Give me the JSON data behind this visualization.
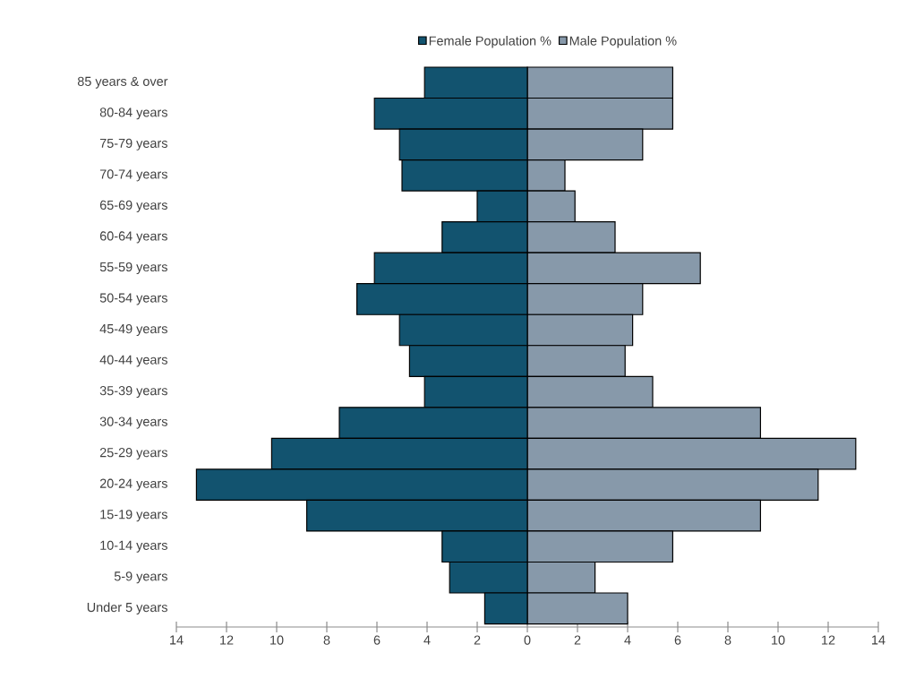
{
  "chart_data": {
    "type": "bar",
    "orientation": "horizontal",
    "legend": "top",
    "stacked": true,
    "categories": [
      "85 years & over",
      "80-84 years",
      "75-79 years",
      "70-74 years",
      "65-69 years",
      "60-64 years",
      "55-59 years",
      "50-54 years",
      "45-49 years",
      "40-44 years",
      "35-39 years",
      "30-34 years",
      "25-29 years",
      "20-24 years",
      "15-19 years",
      "10-14 years",
      "5-9 years",
      "Under 5 years"
    ],
    "series": [
      {
        "name": "Female Population %",
        "color": "#12536f",
        "values": [
          -4.1,
          -6.1,
          -5.1,
          -5.0,
          -2.0,
          -3.4,
          -6.1,
          -6.8,
          -5.1,
          -4.7,
          -4.1,
          -7.5,
          -10.2,
          -13.2,
          -8.8,
          -3.4,
          -3.1,
          -1.7
        ]
      },
      {
        "name": "Male Population %",
        "color": "#8799aa",
        "values": [
          5.8,
          5.8,
          4.6,
          1.5,
          1.9,
          3.5,
          6.9,
          4.6,
          4.2,
          3.9,
          5.0,
          9.3,
          13.1,
          11.6,
          9.3,
          5.8,
          2.7,
          4.0
        ]
      }
    ],
    "xlim": [
      -14,
      14
    ],
    "xticks": [
      {
        "value": -14,
        "label": "14"
      },
      {
        "value": -12,
        "label": "12"
      },
      {
        "value": -10,
        "label": "10"
      },
      {
        "value": -8,
        "label": "8"
      },
      {
        "value": -6,
        "label": "6"
      },
      {
        "value": -4,
        "label": "4"
      },
      {
        "value": -2,
        "label": "2"
      },
      0,
      2,
      4,
      6,
      8,
      10,
      12,
      14
    ]
  }
}
